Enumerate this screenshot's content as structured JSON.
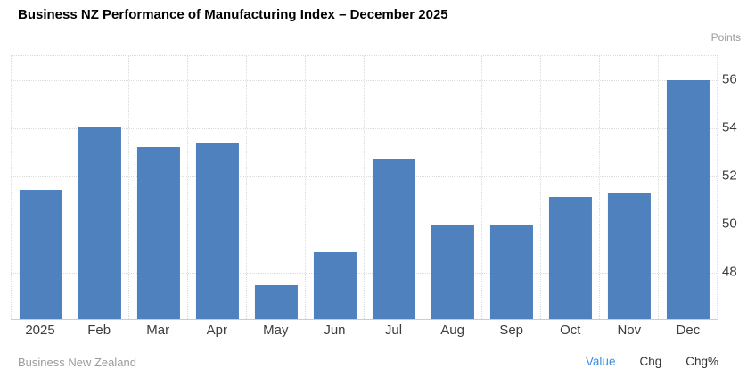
{
  "header": {
    "title": "Business NZ Performance of Manufacturing Index – December 2025",
    "unit_label": "Points"
  },
  "chart_data": {
    "type": "bar",
    "title": "Business NZ Performance of Manufacturing Index – December 2025",
    "categories": [
      "2025",
      "Feb",
      "Mar",
      "Apr",
      "May",
      "Jun",
      "Jul",
      "Aug",
      "Sep",
      "Oct",
      "Nov",
      "Dec"
    ],
    "values": [
      51.4,
      54.0,
      53.2,
      53.4,
      47.4,
      48.8,
      52.7,
      49.9,
      49.9,
      51.1,
      51.3,
      56.0
    ],
    "xlabel": "",
    "ylabel": "Points",
    "ylim": [
      46,
      57
    ],
    "yticks": [
      48,
      50,
      52,
      54,
      56
    ],
    "y_axis_side": "right",
    "grid": "dotted",
    "legend": "none"
  },
  "footer": {
    "source": "Business New Zealand",
    "tabs": [
      {
        "label": "Value",
        "active": true
      },
      {
        "label": "Chg",
        "active": false
      },
      {
        "label": "Chg%",
        "active": false
      }
    ]
  },
  "colors": {
    "bar": "#4e81bd",
    "accent_link": "#3a8ee6",
    "grid": "#dcdcdc",
    "axis_text": "#3c3c3c",
    "muted_text": "#9b9b9b"
  }
}
